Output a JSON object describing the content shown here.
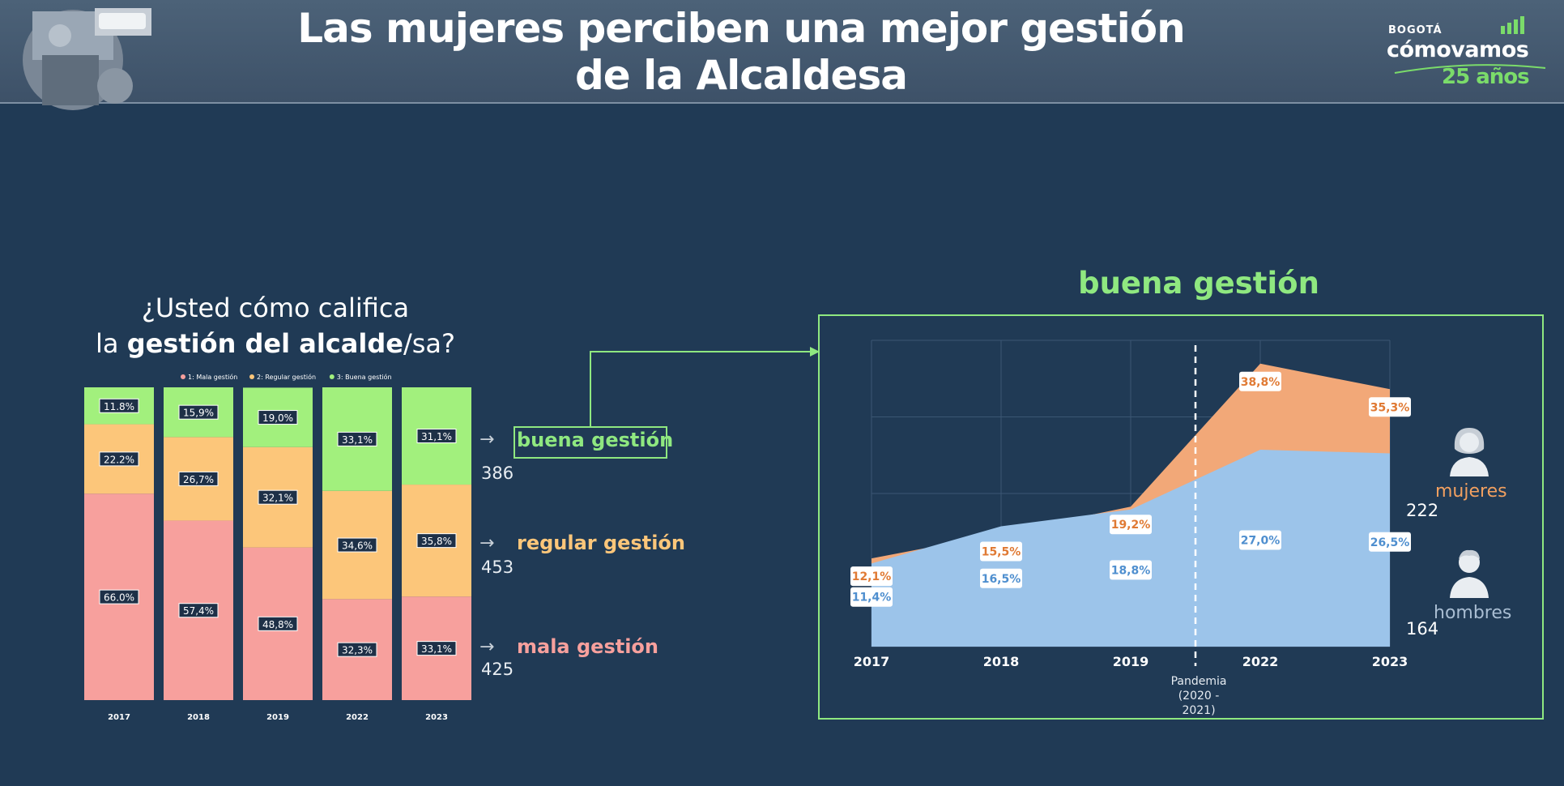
{
  "header": {
    "title_line1": "Las mujeres perciben una mejor gestión",
    "title_line2": "de la Alcaldesa",
    "logo_small": "BOGOTÁ",
    "logo_brand": "cómovamos",
    "logo_years": "25 años"
  },
  "question": {
    "line1": "¿Usted cómo califica",
    "line2_prefix": "la ",
    "line2_bold": "gestión del alcalde",
    "line2_suffix": "/sa?"
  },
  "categories": {
    "buena": {
      "label": "buena gestión",
      "n": "386"
    },
    "regular": {
      "label": "regular gestión",
      "n": "453"
    },
    "mala": {
      "label": "mala gestión",
      "n": "425"
    }
  },
  "right_panel": {
    "title": "buena gestión",
    "mujeres_label": "mujeres",
    "mujeres_n": "222",
    "hombres_label": "hombres",
    "hombres_n": "164",
    "pandemia_line1": "Pandemia",
    "pandemia_line2": "(2020 -",
    "pandemia_line3": "2021)"
  },
  "colors": {
    "mala": "#f7a09d",
    "regular": "#fcc67a",
    "buena": "#a2f07d",
    "mujeres": "#f2a878",
    "hombres": "#9cc4ea",
    "accent_green": "#8fe880",
    "orange_text": "#f2a060",
    "blue_text": "#9cc4ea"
  },
  "chart_data": [
    {
      "type": "bar",
      "stacked": true,
      "normalized_percent": true,
      "categories": [
        "2017",
        "2018",
        "2019",
        "2022",
        "2023"
      ],
      "legend": [
        "1: Mala gestión",
        "2: Regular gestión",
        "3: Buena gestión"
      ],
      "series": [
        {
          "name": "1: Mala gestión",
          "values": [
            66.0,
            57.4,
            48.8,
            32.3,
            33.1
          ],
          "labels": [
            "66.0%",
            "57,4%",
            "48,8%",
            "32,3%",
            "33,1%"
          ]
        },
        {
          "name": "2: Regular gestión",
          "values": [
            22.2,
            26.7,
            32.1,
            34.6,
            35.8
          ],
          "labels": [
            "22.2%",
            "26,7%",
            "32,1%",
            "34,6%",
            "35,8%"
          ]
        },
        {
          "name": "3: Buena gestión",
          "values": [
            11.8,
            15.9,
            19.0,
            33.1,
            31.1
          ],
          "labels": [
            "11.8%",
            "15,9%",
            "19,0%",
            "33,1%",
            "31,1%"
          ]
        }
      ]
    },
    {
      "type": "area",
      "stacked": false,
      "x": [
        "2017",
        "2018",
        "2019",
        "2022",
        "2023"
      ],
      "series": [
        {
          "name": "mujeres",
          "values": [
            12.1,
            15.5,
            19.2,
            38.8,
            35.3
          ],
          "labels": [
            "12,1%",
            "15,5%",
            "19,2%",
            "38,8%",
            "35,3%"
          ]
        },
        {
          "name": "hombres",
          "values": [
            11.4,
            16.5,
            18.8,
            27.0,
            26.5
          ],
          "labels": [
            "11,4%",
            "16,5%",
            "18,8%",
            "27,0%",
            "26,5%"
          ]
        }
      ],
      "annotation": "Pandemia (2020 - 2021)",
      "grid": true
    }
  ]
}
